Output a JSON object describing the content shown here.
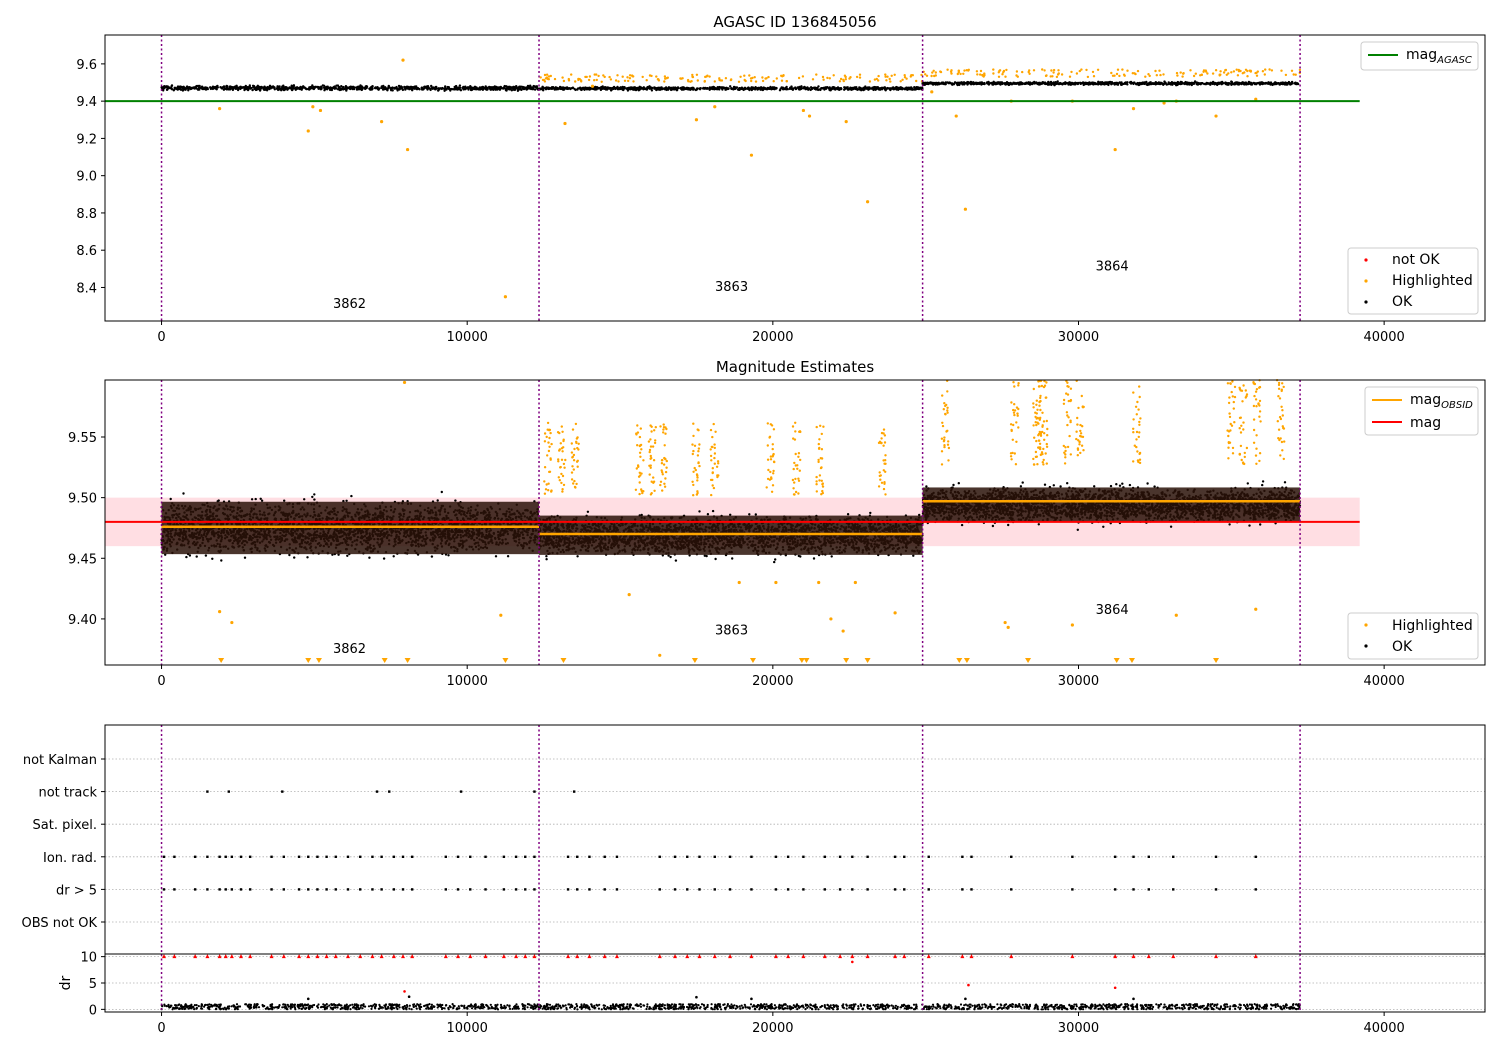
{
  "chart_data": [
    {
      "type": "scatter",
      "title": "AGASC ID 136845056",
      "xlabel": "",
      "ylabel": "",
      "xlim": [
        -1850,
        43300
      ],
      "ylim": [
        8.22,
        9.755
      ],
      "x_ticks": [
        0,
        10000,
        20000,
        30000,
        40000
      ],
      "x_tick_labels": [
        "0",
        "10000",
        "20000",
        "30000",
        "40000"
      ],
      "y_ticks": [
        8.4,
        8.6,
        8.8,
        9.0,
        9.2,
        9.4,
        9.6
      ],
      "y_tick_labels": [
        "8.4",
        "8.6",
        "8.8",
        "9.0",
        "9.2",
        "9.4",
        "9.6"
      ],
      "obsid_boundaries": [
        0,
        12350,
        24900,
        37250
      ],
      "obsid_labels": [
        {
          "text": "3862",
          "x": 6150,
          "y": 8.29
        },
        {
          "text": "3863",
          "x": 18650,
          "y": 8.38
        },
        {
          "text": "3864",
          "x": 31100,
          "y": 8.49
        }
      ],
      "bands": [
        {
          "x0": 0,
          "x1": 12350,
          "center": 9.47,
          "spread": 0.028
        },
        {
          "x0": 12350,
          "x1": 24900,
          "center": 9.468,
          "spread": 0.02
        },
        {
          "x0": 24900,
          "x1": 37250,
          "center": 9.495,
          "spread": 0.018
        }
      ],
      "reference_line": {
        "name": "mag_AGASC",
        "y": 9.4,
        "x0": -1850,
        "x1": 39200,
        "color": "#008000"
      },
      "highlighted_outliers": [
        [
          1900,
          9.36
        ],
        [
          4800,
          9.24
        ],
        [
          4950,
          9.37
        ],
        [
          5200,
          9.35
        ],
        [
          7200,
          9.29
        ],
        [
          7900,
          9.62
        ],
        [
          8050,
          9.14
        ],
        [
          11250,
          8.35
        ],
        [
          13200,
          9.28
        ],
        [
          14100,
          9.48
        ],
        [
          17500,
          9.3
        ],
        [
          18100,
          9.37
        ],
        [
          19300,
          9.11
        ],
        [
          21000,
          9.35
        ],
        [
          21200,
          9.32
        ],
        [
          22400,
          9.29
        ],
        [
          23100,
          8.86
        ],
        [
          25200,
          9.45
        ],
        [
          26000,
          9.32
        ],
        [
          26300,
          8.82
        ],
        [
          27800,
          9.4
        ],
        [
          29800,
          9.4
        ],
        [
          31200,
          9.14
        ],
        [
          31800,
          9.36
        ],
        [
          32800,
          9.39
        ],
        [
          33200,
          9.4
        ],
        [
          34500,
          9.32
        ],
        [
          35800,
          9.41
        ]
      ],
      "legend": [
        "not OK",
        "Highlighted",
        "OK"
      ],
      "legend_placement": "lower-right",
      "line_legend": [
        "mag_AGASC"
      ],
      "line_legend_placement": "upper-right",
      "colors": {
        "ok": "#000000",
        "highlighted": "#FFA500",
        "not_ok": "#FF0000",
        "agasc": "#008000",
        "boundary": "#800080"
      }
    },
    {
      "type": "scatter",
      "title": "Magnitude Estimates",
      "xlabel": "",
      "ylabel": "",
      "xlim": [
        -1850,
        43300
      ],
      "ylim": [
        9.362,
        9.597
      ],
      "x_ticks": [
        0,
        10000,
        20000,
        30000,
        40000
      ],
      "x_tick_labels": [
        "0",
        "10000",
        "20000",
        "30000",
        "40000"
      ],
      "y_ticks": [
        9.4,
        9.45,
        9.5,
        9.55
      ],
      "y_tick_labels": [
        "9.40",
        "9.45",
        "9.50",
        "9.55"
      ],
      "obsid_boundaries": [
        0,
        12350,
        24900,
        37250
      ],
      "obsid_labels": [
        {
          "text": "3862",
          "x": 6150,
          "y": 9.372
        },
        {
          "text": "3863",
          "x": 18650,
          "y": 9.387
        },
        {
          "text": "3864",
          "x": 31100,
          "y": 9.404
        }
      ],
      "bands": [
        {
          "x0": 0,
          "x1": 12350,
          "center": 9.475,
          "spread": 0.024
        },
        {
          "x0": 12350,
          "x1": 24900,
          "center": 9.469,
          "spread": 0.018
        },
        {
          "x0": 24900,
          "x1": 37250,
          "center": 9.494,
          "spread": 0.016
        }
      ],
      "mag_obsid": [
        {
          "x0": 0,
          "x1": 12350,
          "y": 9.476
        },
        {
          "x0": 12350,
          "x1": 24900,
          "y": 9.47
        },
        {
          "x0": 24900,
          "x1": 37250,
          "y": 9.497
        }
      ],
      "mag": {
        "y": 9.48,
        "x0": -1850,
        "x1": 39200,
        "band_low": 9.46,
        "band_high": 9.5
      },
      "offscale_markers_x": [
        1950,
        4800,
        5150,
        7300,
        8050,
        11250,
        13150,
        17450,
        19350,
        20950,
        21100,
        22400,
        23100,
        26100,
        26350,
        28350,
        31250,
        31750,
        34500
      ],
      "highlighted_outliers": [
        [
          1900,
          9.406
        ],
        [
          2300,
          9.397
        ],
        [
          7950,
          9.595
        ],
        [
          11100,
          9.403
        ],
        [
          15300,
          9.42
        ],
        [
          16300,
          9.37
        ],
        [
          18900,
          9.43
        ],
        [
          20100,
          9.43
        ],
        [
          21500,
          9.43
        ],
        [
          21900,
          9.4
        ],
        [
          22300,
          9.39
        ],
        [
          22700,
          9.43
        ],
        [
          24000,
          9.405
        ],
        [
          27600,
          9.397
        ],
        [
          27700,
          9.393
        ],
        [
          29800,
          9.395
        ],
        [
          33200,
          9.403
        ],
        [
          35800,
          9.408
        ]
      ],
      "legend": [
        "Highlighted",
        "OK"
      ],
      "legend_placement": "lower-right",
      "line_legend": [
        "mag_OBSID",
        "mag"
      ],
      "line_legend_placement": "upper-right",
      "colors": {
        "ok": "#000000",
        "highlighted": "#FFA500",
        "mag_obsid": "#FFA500",
        "mag": "#FF0000",
        "mag_band": "#FFB6C1",
        "boundary": "#800080"
      }
    },
    {
      "type": "scatter",
      "title": "",
      "xlabel": "",
      "ylabel": "",
      "xlim": [
        -1850,
        43300
      ],
      "categories": [
        "not Kalman",
        "not track",
        "Sat. pixel.",
        "Ion. rad.",
        "dr > 5",
        "OBS not OK"
      ],
      "flag_x": {
        "not Kalman": [],
        "not track": [
          1500,
          2200,
          3950,
          7050,
          7450,
          9800,
          12200,
          13500
        ],
        "Sat. pixel.": [],
        "Ion. rad.": [
          80,
          420,
          1100,
          1500,
          1900,
          2100,
          2300,
          2600,
          2900,
          3600,
          4000,
          4500,
          4800,
          5100,
          5400,
          5700,
          6100,
          6500,
          6900,
          7200,
          7600,
          7900,
          8200,
          9300,
          9700,
          10100,
          10600,
          11200,
          11600,
          11900,
          12200,
          13300,
          13600,
          14000,
          14500,
          14900,
          16300,
          16800,
          17200,
          17600,
          18100,
          18600,
          19300,
          20100,
          20500,
          21000,
          21700,
          22200,
          22600,
          23100,
          24000,
          24300,
          25100,
          26200,
          26500,
          27800,
          29800,
          31200,
          31800,
          32300,
          33100,
          34500,
          35800
        ],
        "dr > 5": [
          80,
          420,
          1100,
          1500,
          1900,
          2100,
          2300,
          2600,
          2900,
          3600,
          4000,
          4500,
          4800,
          5100,
          5400,
          5700,
          6100,
          6500,
          6900,
          7200,
          7600,
          7900,
          8200,
          9300,
          9700,
          10100,
          10600,
          11200,
          11600,
          11900,
          12200,
          13300,
          13600,
          14000,
          14500,
          14900,
          16300,
          16800,
          17200,
          17600,
          18100,
          18600,
          19300,
          20100,
          20500,
          21000,
          21700,
          22200,
          22600,
          23100,
          24000,
          24300,
          25100,
          26200,
          26500,
          27800,
          29800,
          31200,
          31800,
          32300,
          33100,
          34500,
          35800
        ],
        "OBS not OK": []
      },
      "obsid_boundaries": [
        0,
        12350,
        24900,
        37250
      ],
      "colors": {
        "flag": "#000000",
        "grid": "#b0b0b0",
        "boundary": "#800080"
      }
    },
    {
      "type": "scatter",
      "title": "",
      "xlabel": "",
      "ylabel": "dr",
      "xlim": [
        -1850,
        43300
      ],
      "ylim": [
        -0.5,
        10.5
      ],
      "y_ticks": [
        0,
        5,
        10
      ],
      "y_tick_labels": [
        "0",
        "5",
        "10"
      ],
      "x_ticks": [
        0,
        10000,
        20000,
        30000,
        40000
      ],
      "x_tick_labels": [
        "0",
        "10000",
        "20000",
        "30000",
        "40000"
      ],
      "dr_typical_max": 1.0,
      "dr_clipped": 10,
      "dr_clipped_x": [
        80,
        420,
        1100,
        1500,
        1900,
        2100,
        2300,
        2600,
        2900,
        3600,
        4000,
        4500,
        4800,
        5100,
        5400,
        5700,
        6100,
        6500,
        6900,
        7200,
        7600,
        7900,
        8200,
        9300,
        9700,
        10100,
        10600,
        11200,
        11600,
        11900,
        12200,
        13300,
        13600,
        14000,
        14500,
        14900,
        16300,
        16800,
        17200,
        17600,
        18100,
        18600,
        19300,
        20100,
        20500,
        21000,
        21700,
        22200,
        22600,
        23100,
        24000,
        24300,
        25100,
        26200,
        26500,
        27800,
        29800,
        31200,
        31800,
        32300,
        33100,
        34500,
        35800
      ],
      "dr_outliers": [
        [
          4800,
          2.0
        ],
        [
          7950,
          3.4
        ],
        [
          8100,
          2.4
        ],
        [
          17500,
          2.3
        ],
        [
          19300,
          2.0
        ],
        [
          22600,
          9.0
        ],
        [
          26300,
          2.0
        ],
        [
          26400,
          4.6
        ],
        [
          31200,
          4.1
        ],
        [
          31800,
          2.0
        ]
      ],
      "obsid_boundaries": [
        0,
        12350,
        24900,
        37250
      ],
      "colors": {
        "ok": "#000000",
        "not_ok": "#FF0000",
        "grid": "#b0b0b0",
        "boundary": "#800080"
      }
    }
  ]
}
